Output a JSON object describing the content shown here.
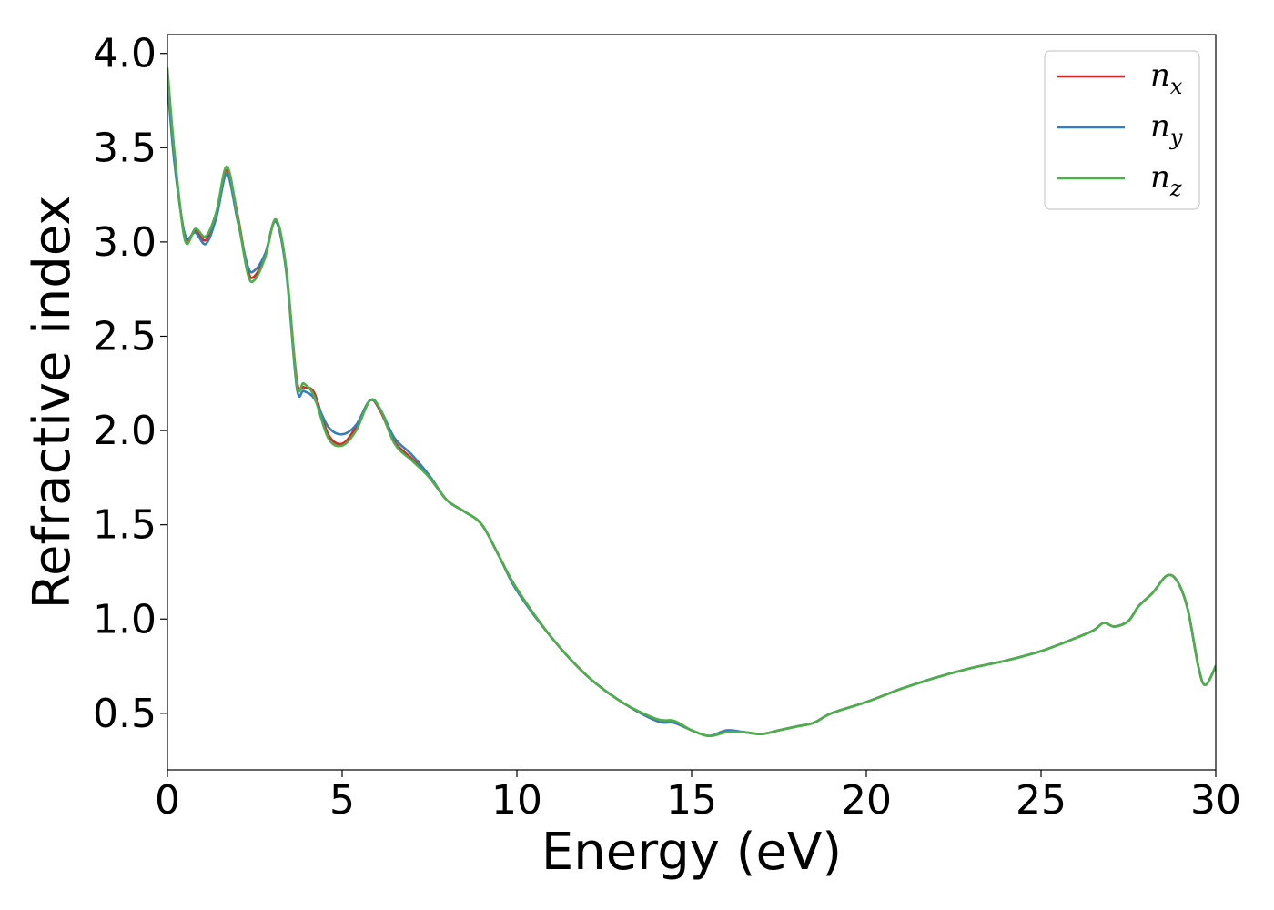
{
  "chart_data": {
    "type": "line",
    "title": "",
    "xlabel": "Energy (eV)",
    "ylabel": "Refractive index",
    "xlim": [
      0,
      30
    ],
    "ylim": [
      0.2,
      4.1
    ],
    "xticks": [
      0,
      5,
      10,
      15,
      20,
      25,
      30
    ],
    "xtick_labels": [
      "0",
      "5",
      "10",
      "15",
      "20",
      "25",
      "30"
    ],
    "yticks": [
      0.5,
      1.0,
      1.5,
      2.0,
      2.5,
      3.0,
      3.5,
      4.0
    ],
    "ytick_labels": [
      "0.5",
      "1.0",
      "1.5",
      "2.0",
      "2.5",
      "3.0",
      "3.5",
      "4.0"
    ],
    "grid": false,
    "legend_position": "top-right",
    "series": [
      {
        "name": "n_x",
        "label_base": "n",
        "label_sub": "x",
        "color": "#d62728",
        "x": [
          0,
          0.2,
          0.5,
          0.8,
          1.1,
          1.4,
          1.7,
          2.0,
          2.3,
          2.5,
          2.8,
          3.1,
          3.4,
          3.7,
          3.9,
          4.2,
          4.6,
          5.0,
          5.4,
          5.8,
          6.1,
          6.5,
          7.0,
          7.5,
          8.0,
          8.5,
          9.0,
          9.5,
          10.0,
          11.0,
          12.0,
          13.0,
          14.0,
          14.5,
          15.0,
          15.5,
          16.0,
          16.5,
          17.0,
          17.5,
          18.0,
          18.5,
          19.0,
          20.0,
          21.0,
          22.0,
          23.0,
          24.0,
          25.0,
          26.0,
          26.5,
          26.8,
          27.1,
          27.5,
          27.8,
          28.2,
          28.6,
          28.9,
          29.2,
          29.5,
          29.7,
          30.0
        ],
        "y": [
          3.88,
          3.45,
          3.03,
          3.06,
          3.01,
          3.15,
          3.38,
          3.15,
          2.85,
          2.82,
          2.93,
          3.11,
          2.85,
          2.27,
          2.23,
          2.2,
          1.98,
          1.93,
          2.02,
          2.16,
          2.1,
          1.94,
          1.85,
          1.75,
          1.63,
          1.57,
          1.5,
          1.33,
          1.16,
          0.9,
          0.7,
          0.56,
          0.46,
          0.45,
          0.41,
          0.38,
          0.4,
          0.4,
          0.39,
          0.41,
          0.43,
          0.45,
          0.5,
          0.56,
          0.63,
          0.69,
          0.74,
          0.78,
          0.83,
          0.9,
          0.94,
          0.98,
          0.96,
          0.99,
          1.07,
          1.14,
          1.23,
          1.2,
          1.05,
          0.75,
          0.65,
          0.75
        ]
      },
      {
        "name": "n_y",
        "label_base": "n",
        "label_sub": "y",
        "color": "#377eb8",
        "x": [
          0,
          0.2,
          0.5,
          0.8,
          1.1,
          1.4,
          1.7,
          2.0,
          2.3,
          2.5,
          2.8,
          3.1,
          3.4,
          3.7,
          3.9,
          4.2,
          4.6,
          5.0,
          5.4,
          5.8,
          6.1,
          6.5,
          7.0,
          7.5,
          8.0,
          8.5,
          9.0,
          9.5,
          10.0,
          11.0,
          12.0,
          13.0,
          14.0,
          14.5,
          15.0,
          15.5,
          16.0,
          16.5,
          17.0,
          17.5,
          18.0,
          18.5,
          19.0,
          20.0,
          21.0,
          22.0,
          23.0,
          24.0,
          25.0,
          26.0,
          26.5,
          26.8,
          27.1,
          27.5,
          27.8,
          28.2,
          28.6,
          28.9,
          29.2,
          29.5,
          29.7,
          30.0
        ],
        "y": [
          3.85,
          3.42,
          3.04,
          3.05,
          2.99,
          3.13,
          3.36,
          3.12,
          2.87,
          2.85,
          2.94,
          3.11,
          2.84,
          2.23,
          2.21,
          2.17,
          2.02,
          1.98,
          2.03,
          2.16,
          2.11,
          1.96,
          1.87,
          1.76,
          1.63,
          1.57,
          1.5,
          1.33,
          1.15,
          0.9,
          0.7,
          0.56,
          0.46,
          0.45,
          0.41,
          0.38,
          0.41,
          0.4,
          0.39,
          0.41,
          0.43,
          0.45,
          0.5,
          0.56,
          0.63,
          0.69,
          0.74,
          0.78,
          0.83,
          0.9,
          0.94,
          0.98,
          0.96,
          0.99,
          1.07,
          1.14,
          1.23,
          1.2,
          1.05,
          0.75,
          0.65,
          0.75
        ]
      },
      {
        "name": "n_z",
        "label_base": "n",
        "label_sub": "z",
        "color": "#4daf4a",
        "x": [
          0,
          0.2,
          0.5,
          0.8,
          1.1,
          1.4,
          1.7,
          2.0,
          2.3,
          2.5,
          2.8,
          3.1,
          3.4,
          3.7,
          3.9,
          4.2,
          4.6,
          5.0,
          5.4,
          5.8,
          6.1,
          6.5,
          7.0,
          7.5,
          8.0,
          8.5,
          9.0,
          9.5,
          10.0,
          11.0,
          12.0,
          13.0,
          14.0,
          14.5,
          15.0,
          15.5,
          16.0,
          16.5,
          17.0,
          17.5,
          18.0,
          18.5,
          19.0,
          20.0,
          21.0,
          22.0,
          23.0,
          24.0,
          25.0,
          26.0,
          26.5,
          26.8,
          27.1,
          27.5,
          27.8,
          28.2,
          28.6,
          28.9,
          29.2,
          29.5,
          29.7,
          30.0
        ],
        "y": [
          3.92,
          3.48,
          3.01,
          3.07,
          3.03,
          3.16,
          3.4,
          3.14,
          2.83,
          2.8,
          2.92,
          3.12,
          2.86,
          2.25,
          2.25,
          2.18,
          1.96,
          1.92,
          2.0,
          2.16,
          2.11,
          1.93,
          1.84,
          1.75,
          1.63,
          1.57,
          1.5,
          1.33,
          1.16,
          0.9,
          0.7,
          0.56,
          0.47,
          0.46,
          0.41,
          0.38,
          0.4,
          0.4,
          0.39,
          0.41,
          0.43,
          0.45,
          0.5,
          0.56,
          0.63,
          0.69,
          0.74,
          0.78,
          0.83,
          0.9,
          0.94,
          0.98,
          0.96,
          0.99,
          1.07,
          1.14,
          1.23,
          1.2,
          1.05,
          0.75,
          0.65,
          0.75
        ]
      }
    ]
  }
}
